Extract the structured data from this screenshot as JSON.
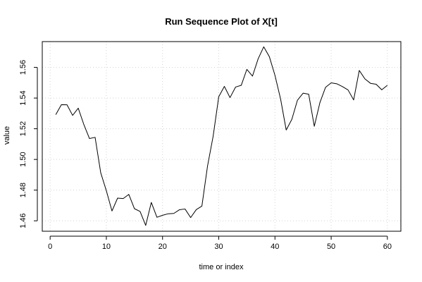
{
  "chart_data": {
    "type": "line",
    "title": "Run Sequence Plot of X[t]",
    "xlabel": "time or index",
    "ylabel": "value",
    "xlim": [
      -1.4,
      62.4
    ],
    "ylim": [
      1.4532,
      1.5768
    ],
    "x_ticks": [
      0,
      10,
      20,
      30,
      40,
      50,
      60
    ],
    "x_tick_labels": [
      "0",
      "10",
      "20",
      "30",
      "40",
      "50",
      "60"
    ],
    "y_ticks": [
      1.46,
      1.48,
      1.5,
      1.52,
      1.54,
      1.56
    ],
    "y_tick_labels": [
      "1.46",
      "1.48",
      "1.50",
      "1.52",
      "1.54",
      "1.56"
    ],
    "grid": true,
    "line_color": "#000000",
    "grid_color": "#d3d3d3",
    "x": [
      1,
      2,
      3,
      4,
      5,
      6,
      7,
      8,
      9,
      10,
      11,
      12,
      13,
      14,
      15,
      16,
      17,
      18,
      19,
      20,
      21,
      22,
      23,
      24,
      25,
      26,
      27,
      28,
      29,
      30,
      31,
      32,
      33,
      34,
      35,
      36,
      37,
      38,
      39,
      40,
      41,
      42,
      43,
      44,
      45,
      46,
      47,
      48,
      49,
      50,
      51,
      52,
      53,
      54,
      55,
      56,
      57,
      58,
      59,
      60
    ],
    "values": [
      1.5292,
      1.5357,
      1.5356,
      1.5287,
      1.5334,
      1.5227,
      1.5136,
      1.5144,
      1.4913,
      1.4796,
      1.4664,
      1.4748,
      1.4745,
      1.4772,
      1.4679,
      1.4661,
      1.457,
      1.472,
      1.4623,
      1.4636,
      1.4646,
      1.4648,
      1.4672,
      1.4677,
      1.4621,
      1.4673,
      1.4696,
      1.4956,
      1.5151,
      1.5409,
      1.5476,
      1.5403,
      1.5472,
      1.5483,
      1.5587,
      1.5543,
      1.5655,
      1.5734,
      1.567,
      1.5548,
      1.5394,
      1.5192,
      1.5261,
      1.5386,
      1.5432,
      1.5425,
      1.5216,
      1.5371,
      1.547,
      1.5499,
      1.5493,
      1.5475,
      1.5453,
      1.5388,
      1.558,
      1.5525,
      1.5496,
      1.549,
      1.5454,
      1.5483
    ]
  }
}
